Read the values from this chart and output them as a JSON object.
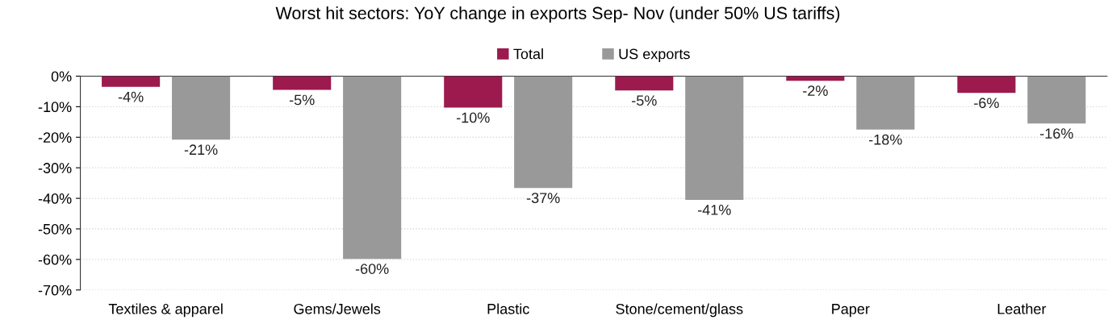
{
  "chart_data": {
    "type": "bar",
    "title": "Worst hit sectors: YoY change in exports Sep- Nov (under 50% US tariffs)",
    "categories": [
      "Textiles & apparel",
      "Gems/Jewels",
      "Plastic",
      "Stone/cement/glass",
      "Paper",
      "Leather"
    ],
    "series": [
      {
        "name": "Total",
        "color": "#9c1a4e",
        "values": [
          -3.5,
          -4.5,
          -10.3,
          -4.7,
          -1.5,
          -5.5
        ],
        "value_labels": [
          "-4%",
          "-5%",
          "-10%",
          "-5%",
          "-2%",
          "-6%"
        ]
      },
      {
        "name": "US exports",
        "color": "#999999",
        "values": [
          -20.8,
          -59.8,
          -36.6,
          -40.5,
          -17.5,
          -15.5
        ],
        "value_labels": [
          "-21%",
          "-60%",
          "-37%",
          "-41%",
          "-18%",
          "-16%"
        ]
      }
    ],
    "ylim": [
      -70,
      0
    ],
    "yticks": [
      {
        "value": 0,
        "label": "0%"
      },
      {
        "value": -10,
        "label": "-10%"
      },
      {
        "value": -20,
        "label": "-20%"
      },
      {
        "value": -30,
        "label": "-30%"
      },
      {
        "value": -40,
        "label": "-40%"
      },
      {
        "value": -50,
        "label": "-50%"
      },
      {
        "value": -60,
        "label": "-60%"
      },
      {
        "value": -70,
        "label": "-70%"
      }
    ],
    "grid": "y",
    "legend": "top"
  }
}
